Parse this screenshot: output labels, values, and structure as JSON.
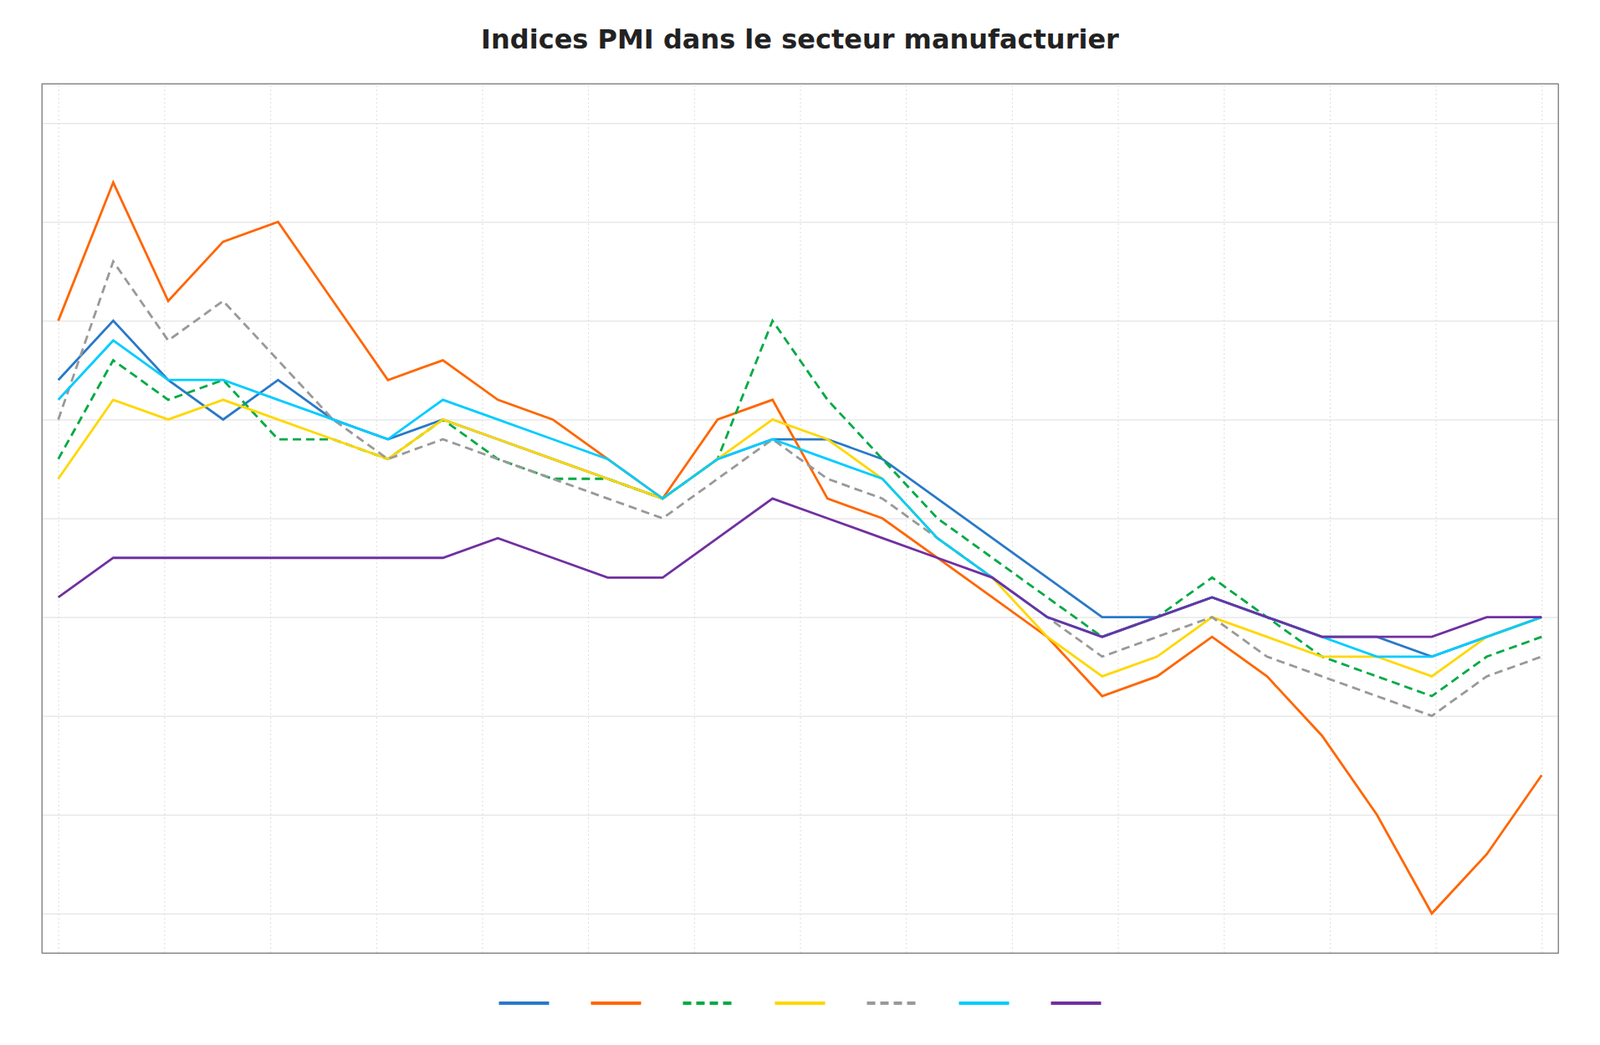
{
  "chart_data": {
    "type": "line",
    "title": "Indices PMI dans le secteur manufacturier",
    "x": [
      0,
      1,
      2,
      3,
      4,
      5,
      6,
      7,
      8,
      9,
      10,
      11,
      12,
      13,
      14,
      15,
      16,
      17,
      18,
      19,
      20,
      21,
      22,
      23,
      24,
      25,
      26,
      27
    ],
    "series": [
      {
        "color": "#2979C8",
        "line_style": "solid",
        "values": [
          57,
          60,
          57,
          55,
          57,
          55,
          54,
          55,
          54,
          53,
          52,
          51,
          53,
          54,
          54,
          53,
          51,
          49,
          47,
          45,
          45,
          46,
          45,
          44,
          44,
          43,
          44,
          45
        ]
      },
      {
        "color": "#FF6600",
        "line_style": "solid",
        "values": [
          60,
          67,
          61,
          64,
          65,
          61,
          57,
          58,
          56,
          55,
          53,
          51,
          55,
          56,
          51,
          50,
          48,
          46,
          44,
          41,
          42,
          44,
          42,
          39,
          35,
          30,
          33,
          37
        ]
      },
      {
        "color": "#00AA44",
        "line_style": "dashed",
        "values": [
          53,
          58,
          56,
          57,
          54,
          54,
          53,
          55,
          53,
          52,
          52,
          51,
          53,
          60,
          56,
          53,
          50,
          48,
          46,
          44,
          45,
          47,
          45,
          43,
          42,
          41,
          43,
          44
        ]
      },
      {
        "color": "#FFD700",
        "line_style": "solid",
        "values": [
          52,
          56,
          55,
          56,
          55,
          54,
          53,
          55,
          54,
          53,
          52,
          51,
          53,
          55,
          54,
          52,
          49,
          47,
          44,
          42,
          43,
          45,
          44,
          43,
          43,
          42,
          44,
          45
        ]
      },
      {
        "color": "#999999",
        "line_style": "dashed",
        "values": [
          55,
          63,
          59,
          61,
          58,
          55,
          53,
          54,
          53,
          52,
          51,
          50,
          52,
          54,
          52,
          51,
          49,
          47,
          45,
          43,
          44,
          45,
          43,
          42,
          41,
          40,
          42,
          43
        ]
      },
      {
        "color": "#00CCFF",
        "line_style": "solid",
        "values": [
          56,
          59,
          57,
          57,
          56,
          55,
          54,
          56,
          55,
          54,
          53,
          51,
          53,
          54,
          53,
          52,
          49,
          47,
          45,
          44,
          45,
          46,
          45,
          44,
          43,
          43,
          44,
          45
        ]
      },
      {
        "color": "#7030A0",
        "line_style": "solid",
        "values": [
          46,
          48,
          48,
          48,
          48,
          48,
          48,
          48,
          49,
          48,
          47,
          47,
          49,
          51,
          50,
          49,
          48,
          47,
          45,
          44,
          45,
          46,
          45,
          44,
          44,
          44,
          45,
          45
        ]
      }
    ],
    "xlim": [
      -0.3,
      27.3
    ],
    "xticks": [
      0,
      1.9285714285714286,
      3.857142857142857,
      5.785714285714286,
      7.714285714285714,
      9.642857142857142,
      11.571428571428571,
      13.5,
      15.428571428571429,
      17.357142857142858,
      19.285714285714285,
      21.214285714285715,
      23.142857142857142,
      25.071428571428573,
      27
    ],
    "ylim": [
      28,
      72
    ],
    "yticks": [
      30,
      35,
      40,
      45,
      50,
      55,
      60,
      65,
      70
    ],
    "grid": true,
    "tick_labels": false,
    "legend": "bottom"
  }
}
